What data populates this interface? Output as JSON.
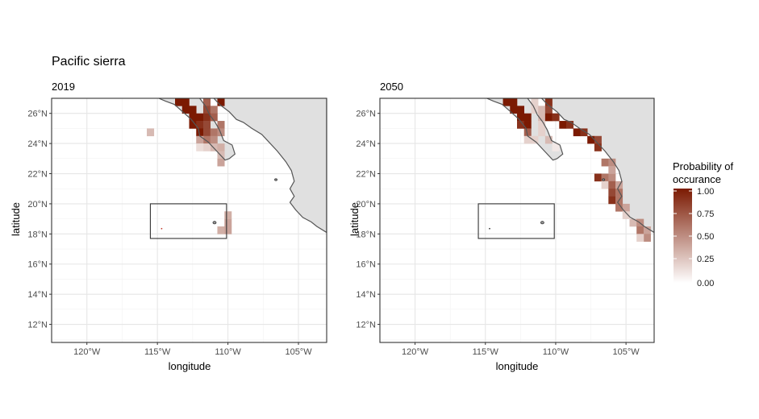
{
  "title": "Pacific sierra",
  "x_axis_title": "longitude",
  "y_axis_title": "latitude",
  "x_ticks": [
    {
      "lon": -120,
      "label": "120°W"
    },
    {
      "lon": -115,
      "label": "115°W"
    },
    {
      "lon": -110,
      "label": "110°W"
    },
    {
      "lon": -105,
      "label": "105°W"
    }
  ],
  "y_ticks": [
    {
      "lat": 26,
      "label": "26°N"
    },
    {
      "lat": 24,
      "label": "24°N"
    },
    {
      "lat": 22,
      "label": "22°N"
    },
    {
      "lat": 20,
      "label": "20°N"
    },
    {
      "lat": 18,
      "label": "18°N"
    },
    {
      "lat": 16,
      "label": "16°N"
    },
    {
      "lat": 14,
      "label": "14°N"
    },
    {
      "lat": 12,
      "label": "12°N"
    }
  ],
  "legend": {
    "title_line1": "Probability of",
    "title_line2": "occurance",
    "labels": [
      "1.00",
      "0.75",
      "0.50",
      "0.25",
      "0.00"
    ],
    "color_low": "#ffffff",
    "color_high": "#7b1a02"
  },
  "map_extent": {
    "lon": [
      -122.5,
      -103
    ],
    "lat": [
      10.8,
      27
    ]
  },
  "study_box": {
    "lon": [
      -115.5,
      -110.1
    ],
    "lat": [
      17.7,
      20
    ]
  },
  "land_color": "#e0e0e0",
  "coast_color": "#555555",
  "chart_data": [
    {
      "type": "heatmap",
      "subtitle": "2019",
      "cell_size_deg": 0.5,
      "cells": [
        {
          "lon": -113.5,
          "lat": 26.75,
          "p": 1.0
        },
        {
          "lon": -113.0,
          "lat": 26.75,
          "p": 1.0
        },
        {
          "lon": -111.5,
          "lat": 26.75,
          "p": 0.7
        },
        {
          "lon": -110.5,
          "lat": 26.75,
          "p": 1.0
        },
        {
          "lon": -113.0,
          "lat": 26.25,
          "p": 1.0
        },
        {
          "lon": -112.5,
          "lat": 26.25,
          "p": 1.0
        },
        {
          "lon": -111.5,
          "lat": 26.25,
          "p": 0.8
        },
        {
          "lon": -111.0,
          "lat": 26.25,
          "p": 0.6
        },
        {
          "lon": -112.5,
          "lat": 25.75,
          "p": 1.0
        },
        {
          "lon": -112.0,
          "lat": 25.75,
          "p": 1.0
        },
        {
          "lon": -111.5,
          "lat": 25.75,
          "p": 0.9
        },
        {
          "lon": -111.0,
          "lat": 25.75,
          "p": 0.7
        },
        {
          "lon": -112.5,
          "lat": 25.25,
          "p": 1.0
        },
        {
          "lon": -112.0,
          "lat": 25.25,
          "p": 0.9
        },
        {
          "lon": -111.5,
          "lat": 25.25,
          "p": 0.8
        },
        {
          "lon": -110.5,
          "lat": 25.25,
          "p": 0.6
        },
        {
          "lon": -115.5,
          "lat": 24.75,
          "p": 0.3
        },
        {
          "lon": -112.0,
          "lat": 24.75,
          "p": 1.0
        },
        {
          "lon": -111.5,
          "lat": 24.75,
          "p": 0.8
        },
        {
          "lon": -111.0,
          "lat": 24.75,
          "p": 0.6
        },
        {
          "lon": -110.5,
          "lat": 24.75,
          "p": 0.5
        },
        {
          "lon": -111.5,
          "lat": 24.25,
          "p": 0.6
        },
        {
          "lon": -111.0,
          "lat": 24.25,
          "p": 0.5
        },
        {
          "lon": -112.0,
          "lat": 24.25,
          "p": 0.4
        },
        {
          "lon": -111.0,
          "lat": 23.75,
          "p": 0.3
        },
        {
          "lon": -111.5,
          "lat": 23.75,
          "p": 0.2
        },
        {
          "lon": -112.0,
          "lat": 23.75,
          "p": 0.15
        },
        {
          "lon": -110.5,
          "lat": 23.75,
          "p": 0.35
        },
        {
          "lon": -110.5,
          "lat": 23.25,
          "p": 0.3
        },
        {
          "lon": -110.5,
          "lat": 22.75,
          "p": 0.4
        },
        {
          "lon": -110.5,
          "lat": 18.25,
          "p": 0.35
        },
        {
          "lon": -110.0,
          "lat": 18.25,
          "p": 0.4
        },
        {
          "lon": -110.0,
          "lat": 18.75,
          "p": 0.4
        },
        {
          "lon": -110.0,
          "lat": 19.25,
          "p": 0.35
        }
      ]
    },
    {
      "type": "heatmap",
      "subtitle": "2050",
      "cell_size_deg": 0.5,
      "cells": [
        {
          "lon": -113.5,
          "lat": 26.75,
          "p": 1.0
        },
        {
          "lon": -113.0,
          "lat": 26.75,
          "p": 1.0
        },
        {
          "lon": -111.5,
          "lat": 26.75,
          "p": 0.2
        },
        {
          "lon": -110.5,
          "lat": 26.75,
          "p": 0.9
        },
        {
          "lon": -113.0,
          "lat": 26.25,
          "p": 1.0
        },
        {
          "lon": -112.5,
          "lat": 26.25,
          "p": 1.0
        },
        {
          "lon": -111.5,
          "lat": 26.25,
          "p": 0.2
        },
        {
          "lon": -111.0,
          "lat": 26.25,
          "p": 0.3
        },
        {
          "lon": -110.5,
          "lat": 26.25,
          "p": 0.8
        },
        {
          "lon": -112.5,
          "lat": 25.75,
          "p": 1.0
        },
        {
          "lon": -112.0,
          "lat": 25.75,
          "p": 1.0
        },
        {
          "lon": -111.0,
          "lat": 25.75,
          "p": 0.3
        },
        {
          "lon": -110.5,
          "lat": 25.75,
          "p": 1.0
        },
        {
          "lon": -110.0,
          "lat": 25.75,
          "p": 0.9
        },
        {
          "lon": -112.5,
          "lat": 25.25,
          "p": 0.9
        },
        {
          "lon": -112.0,
          "lat": 25.25,
          "p": 1.0
        },
        {
          "lon": -111.0,
          "lat": 25.25,
          "p": 0.2
        },
        {
          "lon": -109.5,
          "lat": 25.25,
          "p": 1.0
        },
        {
          "lon": -109.0,
          "lat": 25.25,
          "p": 0.9
        },
        {
          "lon": -112.0,
          "lat": 24.75,
          "p": 0.7
        },
        {
          "lon": -111.0,
          "lat": 24.75,
          "p": 0.2
        },
        {
          "lon": -108.5,
          "lat": 24.75,
          "p": 1.0
        },
        {
          "lon": -108.0,
          "lat": 24.75,
          "p": 0.9
        },
        {
          "lon": -112.0,
          "lat": 24.25,
          "p": 0.2
        },
        {
          "lon": -111.5,
          "lat": 24.25,
          "p": 0.2
        },
        {
          "lon": -110.5,
          "lat": 24.25,
          "p": 0.3
        },
        {
          "lon": -107.5,
          "lat": 24.25,
          "p": 1.0
        },
        {
          "lon": -107.0,
          "lat": 24.25,
          "p": 0.8
        },
        {
          "lon": -110.0,
          "lat": 23.75,
          "p": 0.1
        },
        {
          "lon": -107.0,
          "lat": 23.75,
          "p": 0.9
        },
        {
          "lon": -106.5,
          "lat": 22.75,
          "p": 0.6
        },
        {
          "lon": -106.0,
          "lat": 22.75,
          "p": 0.5
        },
        {
          "lon": -107.0,
          "lat": 21.75,
          "p": 0.9
        },
        {
          "lon": -106.5,
          "lat": 21.75,
          "p": 0.6
        },
        {
          "lon": -106.0,
          "lat": 21.75,
          "p": 0.5
        },
        {
          "lon": -106.0,
          "lat": 22.25,
          "p": 0.4
        },
        {
          "lon": -106.5,
          "lat": 21.25,
          "p": 0.2
        },
        {
          "lon": -106.0,
          "lat": 21.25,
          "p": 0.7
        },
        {
          "lon": -105.5,
          "lat": 21.25,
          "p": 0.4
        },
        {
          "lon": -106.0,
          "lat": 20.75,
          "p": 0.8
        },
        {
          "lon": -105.5,
          "lat": 20.75,
          "p": 0.6
        },
        {
          "lon": -106.0,
          "lat": 20.25,
          "p": 0.9
        },
        {
          "lon": -105.5,
          "lat": 20.25,
          "p": 0.6
        },
        {
          "lon": -105.5,
          "lat": 19.75,
          "p": 0.6
        },
        {
          "lon": -105.0,
          "lat": 19.75,
          "p": 0.4
        },
        {
          "lon": -105.0,
          "lat": 19.25,
          "p": 0.2
        },
        {
          "lon": -104.5,
          "lat": 18.75,
          "p": 0.3
        },
        {
          "lon": -104.0,
          "lat": 18.75,
          "p": 0.5
        },
        {
          "lon": -104.0,
          "lat": 18.25,
          "p": 0.6
        },
        {
          "lon": -103.5,
          "lat": 18.25,
          "p": 0.4
        },
        {
          "lon": -103.5,
          "lat": 17.75,
          "p": 0.5
        },
        {
          "lon": -104.0,
          "lat": 17.75,
          "p": 0.2
        }
      ]
    }
  ]
}
